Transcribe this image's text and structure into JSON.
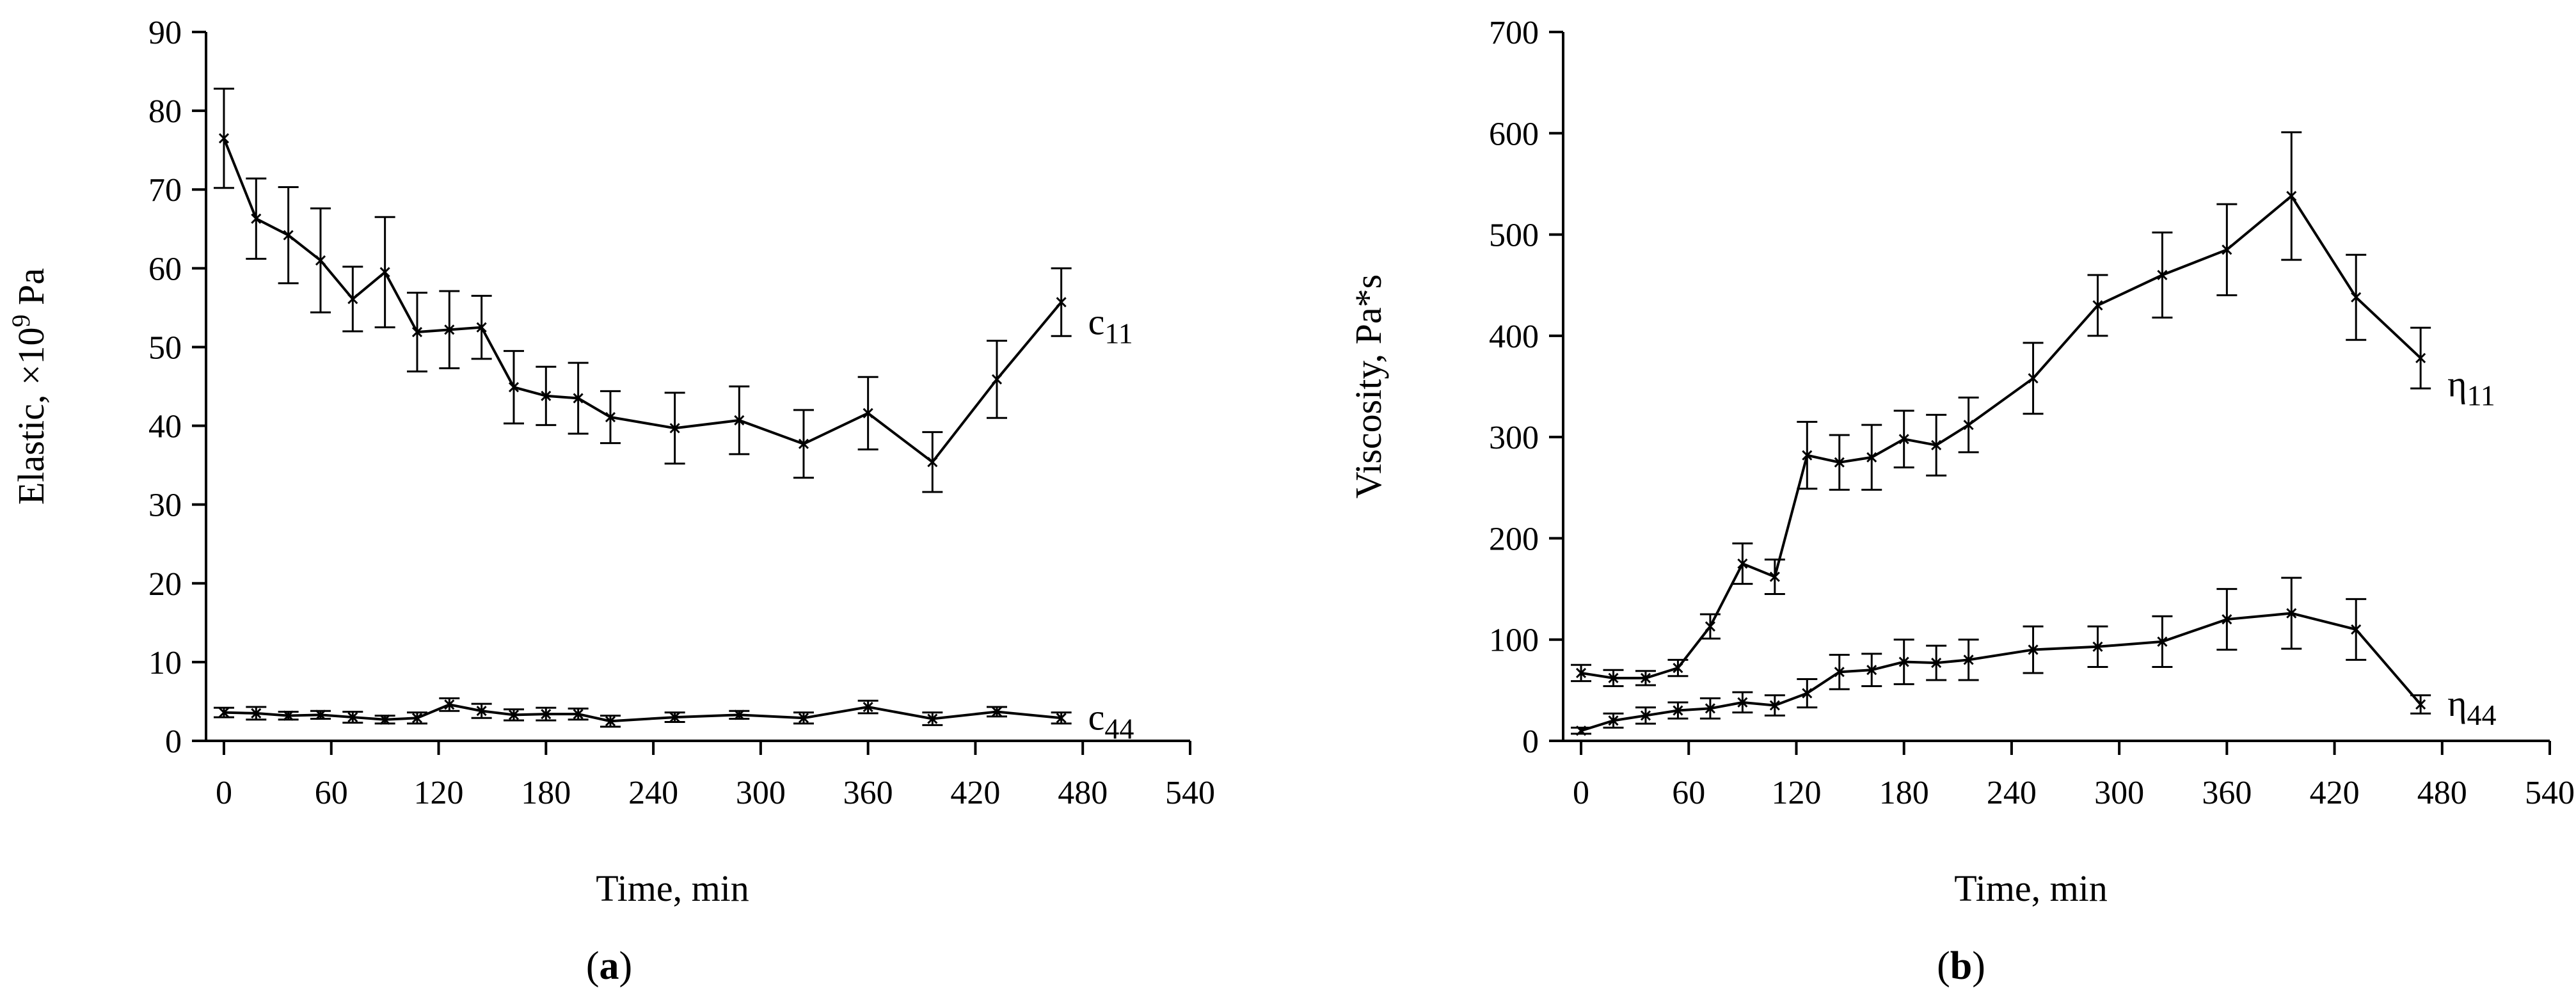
{
  "chart_data": [
    {
      "type": "line",
      "panel_label": "a",
      "xlabel": "Time, min",
      "ylabel": "Elastic, ×10",
      "ylabel_sup": "9",
      "ylabel_unit": " Pa",
      "xlim": [
        -10,
        540
      ],
      "ylim": [
        0,
        90
      ],
      "xticks": [
        0,
        60,
        120,
        180,
        240,
        300,
        360,
        420,
        480,
        540
      ],
      "yticks": [
        0,
        10,
        20,
        30,
        40,
        50,
        60,
        70,
        80,
        90
      ],
      "series": [
        {
          "name": "c11",
          "label_base": "c",
          "label_sub": "11",
          "x": [
            0,
            18,
            36,
            54,
            72,
            90,
            108,
            126,
            144,
            162,
            180,
            198,
            216,
            252,
            288,
            324,
            360,
            396,
            432,
            468
          ],
          "y": [
            76.5,
            66.3,
            64.2,
            61.0,
            56.1,
            59.5,
            51.9,
            52.2,
            52.5,
            44.9,
            43.8,
            43.5,
            41.1,
            39.7,
            40.7,
            37.7,
            41.6,
            35.4,
            45.9,
            55.7
          ],
          "err": [
            6.3,
            5.1,
            6.1,
            6.6,
            4.1,
            7.0,
            5.0,
            4.9,
            4.0,
            4.6,
            3.7,
            4.5,
            3.3,
            4.5,
            4.3,
            4.3,
            4.6,
            3.8,
            4.9,
            4.3
          ]
        },
        {
          "name": "c44",
          "label_base": "c",
          "label_sub": "44",
          "x": [
            0,
            18,
            36,
            54,
            72,
            90,
            108,
            126,
            144,
            162,
            180,
            198,
            216,
            252,
            288,
            324,
            360,
            396,
            432,
            468
          ],
          "y": [
            3.6,
            3.5,
            3.2,
            3.3,
            3.0,
            2.7,
            2.9,
            4.6,
            3.8,
            3.3,
            3.4,
            3.4,
            2.5,
            3.0,
            3.3,
            2.9,
            4.3,
            2.8,
            3.7,
            2.9
          ],
          "err": [
            0.6,
            0.8,
            0.5,
            0.5,
            0.7,
            0.5,
            0.7,
            0.8,
            0.9,
            0.7,
            0.8,
            0.7,
            0.7,
            0.6,
            0.5,
            0.7,
            0.8,
            0.8,
            0.6,
            0.7
          ]
        }
      ]
    },
    {
      "type": "line",
      "panel_label": "b",
      "xlabel": "Time, min",
      "ylabel": "Viscosity, Pa*s",
      "xlim": [
        -10,
        540
      ],
      "ylim": [
        0,
        700
      ],
      "xticks": [
        0,
        60,
        120,
        180,
        240,
        300,
        360,
        420,
        480,
        540
      ],
      "yticks": [
        0,
        100,
        200,
        300,
        400,
        500,
        600,
        700
      ],
      "series": [
        {
          "name": "η11",
          "label_base": "η",
          "label_sub": "11",
          "x": [
            0,
            18,
            36,
            54,
            72,
            90,
            108,
            126,
            144,
            162,
            180,
            198,
            216,
            252,
            288,
            324,
            360,
            396,
            432,
            468
          ],
          "y": [
            67,
            62,
            62,
            72,
            113,
            175,
            162,
            282,
            275,
            280,
            298,
            292,
            312,
            358,
            430,
            460,
            485,
            538,
            438,
            378
          ],
          "err": [
            8,
            8,
            7,
            8,
            12,
            20,
            17,
            33,
            27,
            32,
            28,
            30,
            27,
            35,
            30,
            42,
            45,
            63,
            42,
            30
          ]
        },
        {
          "name": "η44",
          "label_base": "η",
          "label_sub": "44",
          "x": [
            0,
            18,
            36,
            54,
            72,
            90,
            108,
            126,
            144,
            162,
            180,
            198,
            216,
            252,
            288,
            324,
            360,
            396,
            432,
            468
          ],
          "y": [
            10,
            20,
            25,
            30,
            32,
            38,
            35,
            47,
            68,
            70,
            78,
            77,
            80,
            90,
            93,
            98,
            120,
            126,
            110,
            36
          ],
          "err": [
            3,
            7,
            8,
            8,
            10,
            10,
            10,
            14,
            17,
            16,
            22,
            17,
            20,
            23,
            20,
            25,
            30,
            35,
            30,
            9
          ]
        }
      ]
    }
  ]
}
